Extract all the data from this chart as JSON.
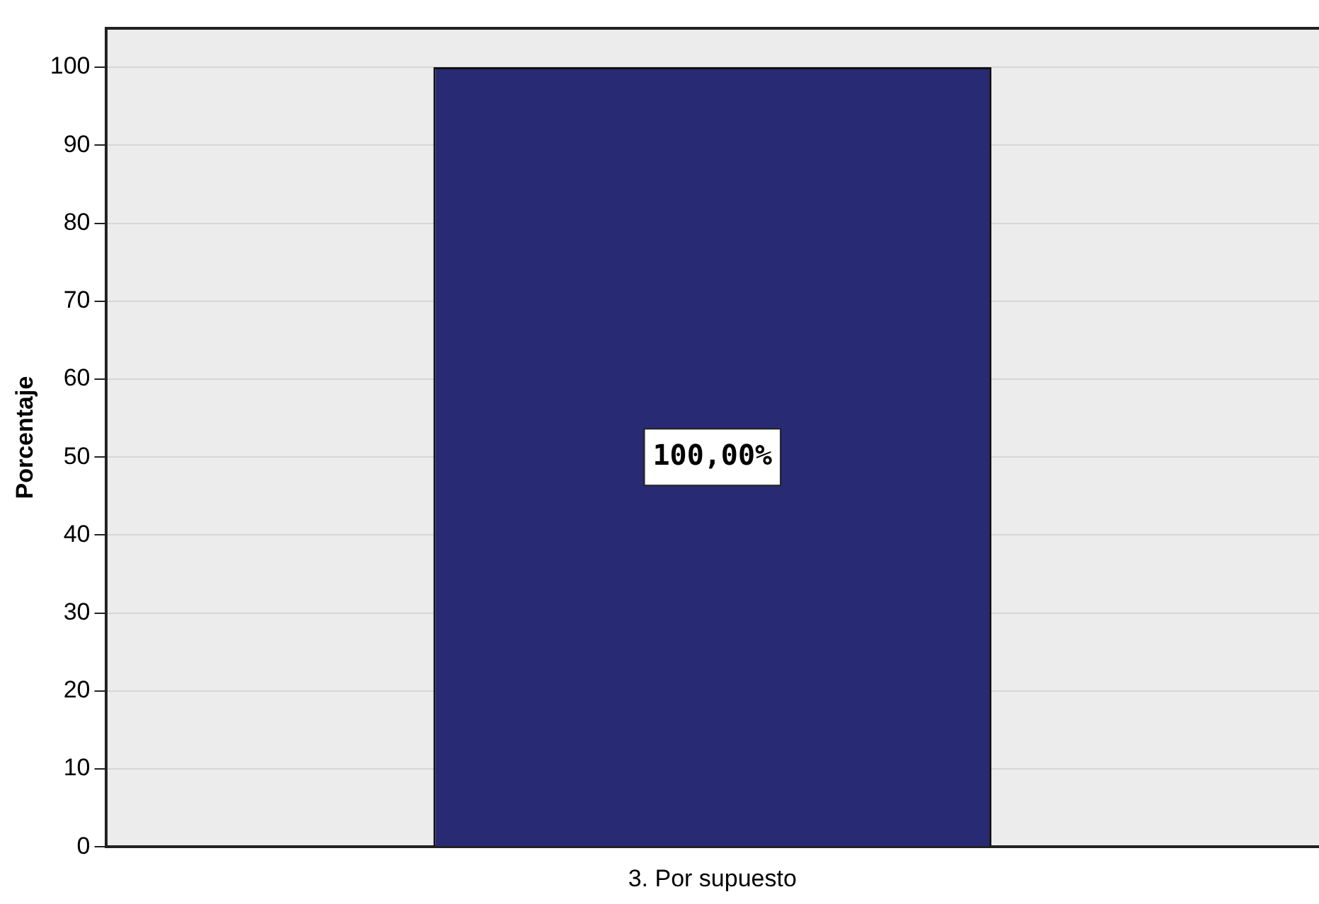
{
  "chart_data": {
    "type": "bar",
    "ylabel": "Porcentaje",
    "categories": [
      "3. Por supuesto"
    ],
    "values": [
      100
    ],
    "color": "#282a73",
    "value_labels": [
      "100,00%"
    ],
    "ylim": [
      0,
      105
    ],
    "yticks": [
      0,
      10,
      20,
      30,
      40,
      50,
      60,
      70,
      80,
      90,
      100
    ],
    "grid": "y"
  }
}
